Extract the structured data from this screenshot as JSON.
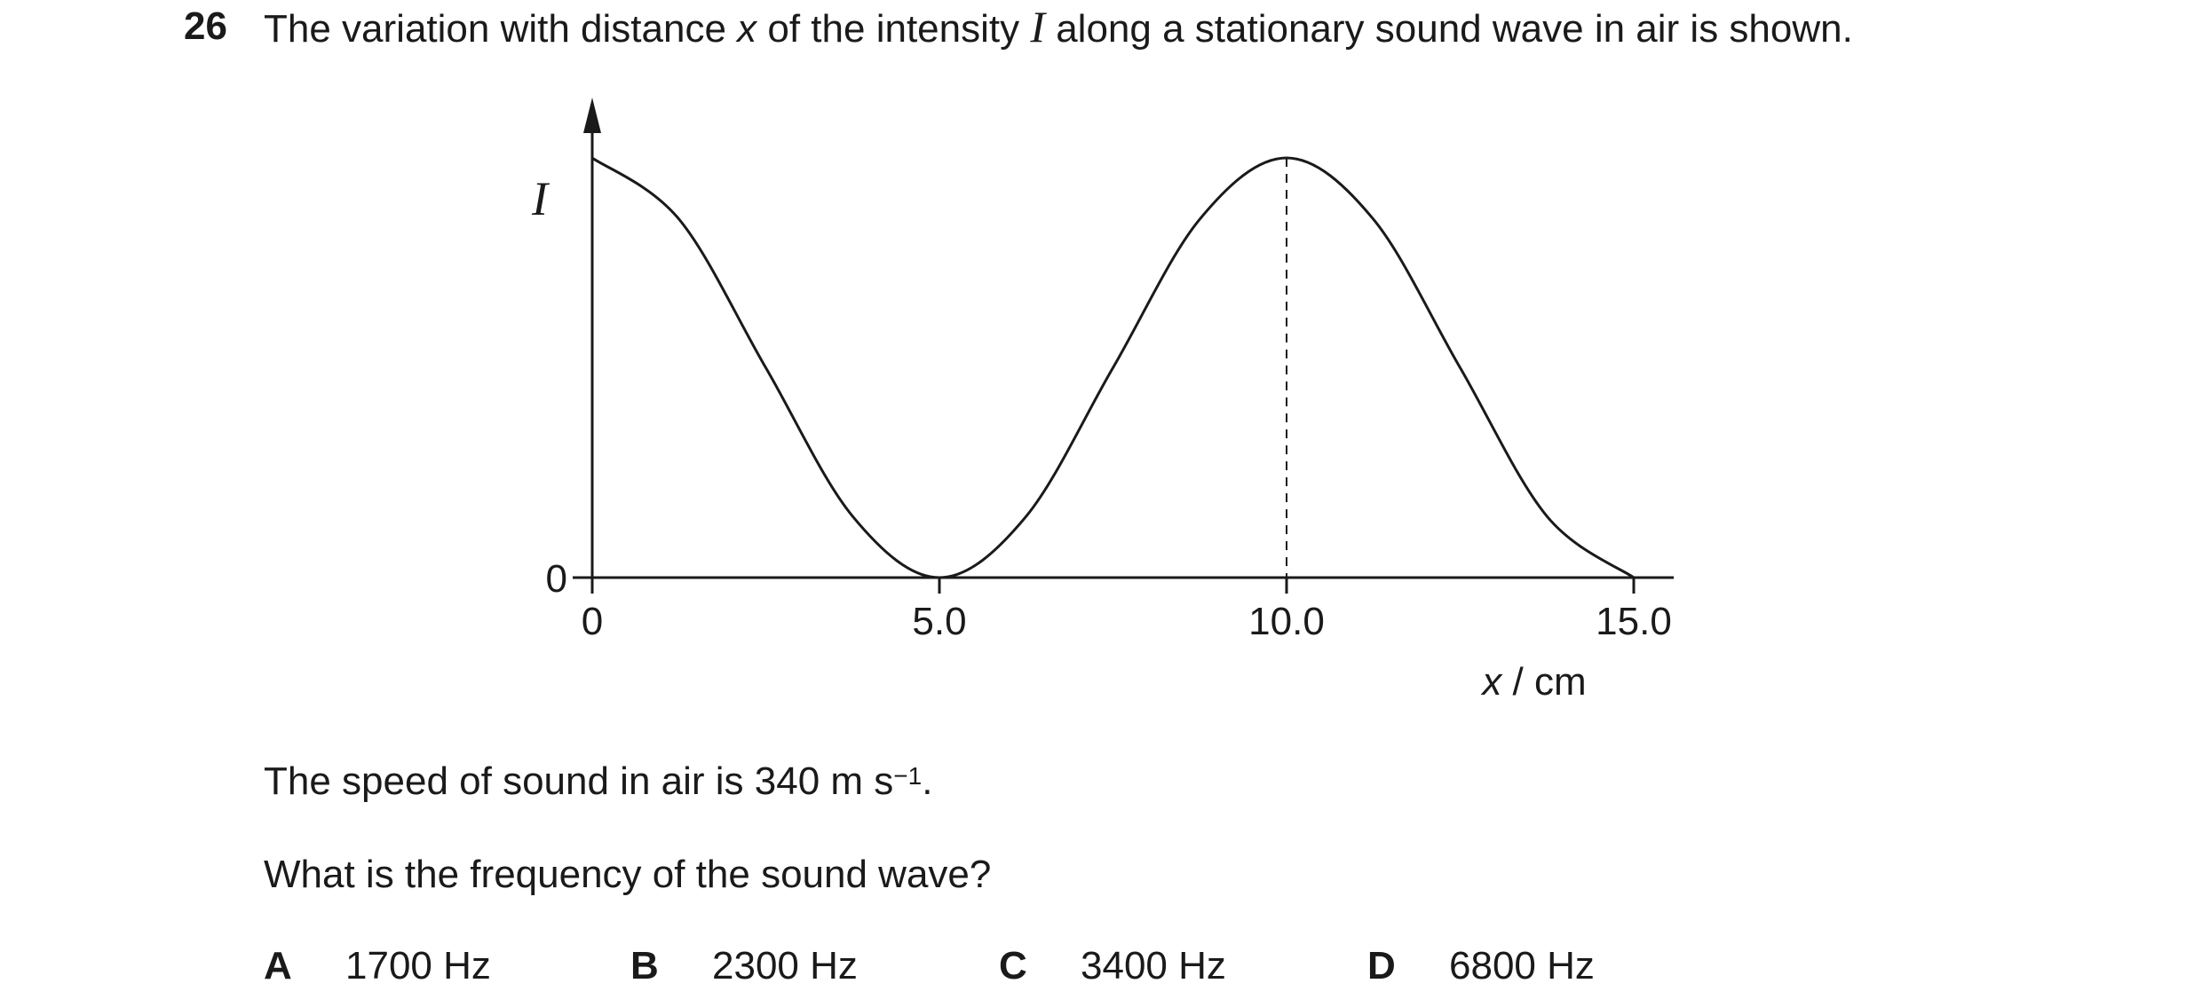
{
  "question": {
    "number": "26",
    "stem_part1": "The variation with distance ",
    "stem_var_x": "x",
    "stem_part2": " of the intensity ",
    "stem_var_I": "I",
    "stem_part3": " along a stationary sound wave in air is shown.",
    "speed_text": "The speed of sound in air is 340 m s",
    "speed_exp": "−1",
    "speed_end": ".",
    "prompt": "What is the frequency of the sound wave?",
    "options": [
      {
        "letter": "A",
        "value": "1700 Hz"
      },
      {
        "letter": "B",
        "value": "2300 Hz"
      },
      {
        "letter": "C",
        "value": "3400 Hz"
      },
      {
        "letter": "D",
        "value": "6800 Hz"
      }
    ]
  },
  "chart_data": {
    "type": "line",
    "ylabel": "I",
    "xlabel_var": "x",
    "xlabel_unit": " / cm",
    "x_ticks": [
      "0",
      "5.0",
      "10.0",
      "15.0"
    ],
    "y_ticks": [
      "0"
    ],
    "xlim": [
      0,
      15.0
    ],
    "ylim": [
      0,
      1
    ],
    "series": [
      {
        "x": [
          0,
          1.25,
          2.5,
          3.75,
          5.0,
          6.25,
          7.5,
          8.75,
          10.0,
          11.25,
          12.5,
          13.75,
          15.0
        ],
        "values": [
          1,
          0.854,
          0.5,
          0.146,
          0,
          0.146,
          0.5,
          0.854,
          1,
          0.854,
          0.5,
          0.146,
          0
        ]
      }
    ],
    "marker_x": 10.0,
    "grid": false,
    "legend": "none"
  }
}
